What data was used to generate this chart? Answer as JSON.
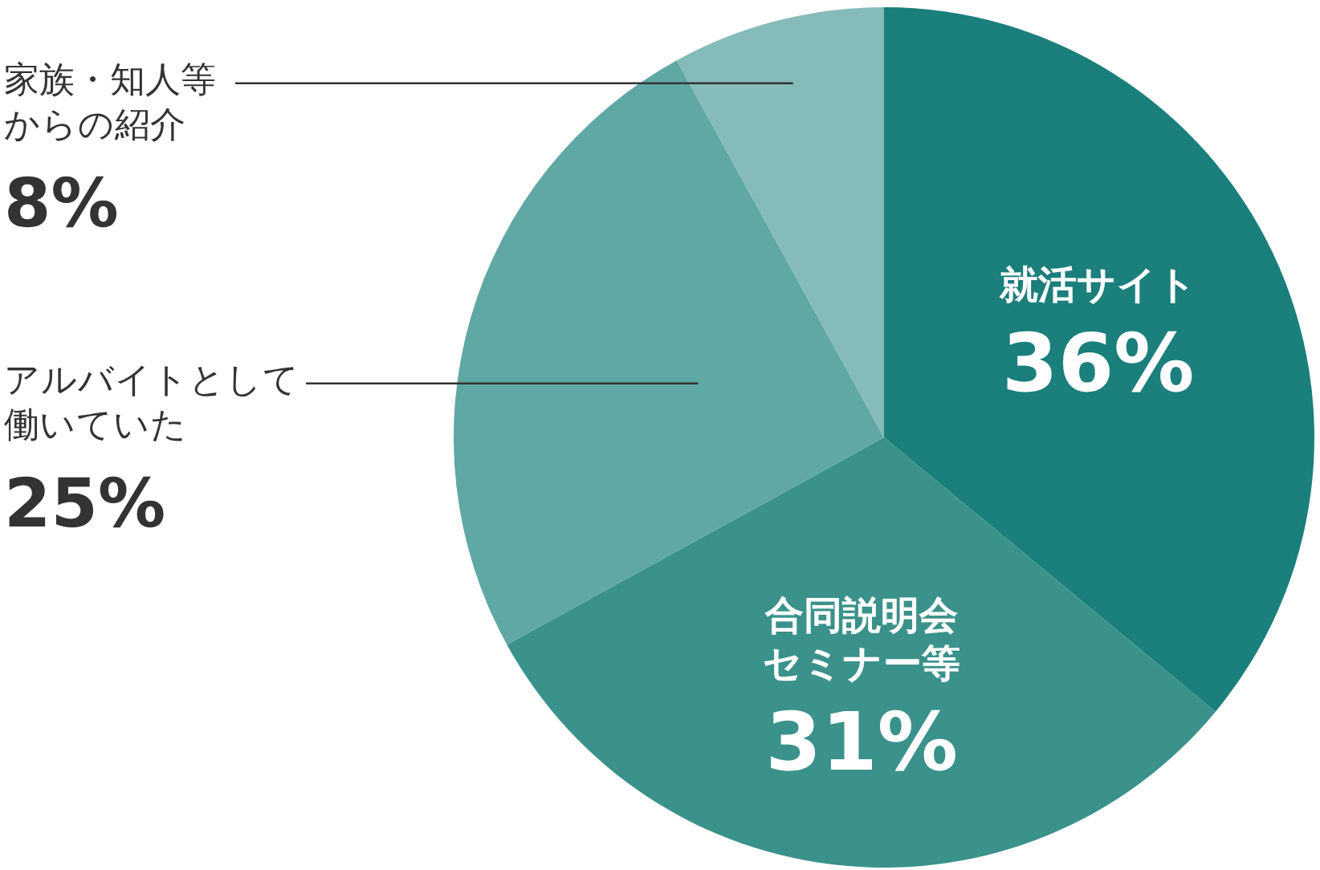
{
  "chart_data": {
    "type": "pie",
    "categories": [
      "就活サイト",
      "合同説明会セミナー等",
      "アルバイトとして働いていた",
      "家族・知人等からの紹介"
    ],
    "values": [
      36,
      31,
      25,
      8
    ],
    "colors": [
      "#1b7f7b",
      "#3a928a",
      "#5fa8a4",
      "#85bbb8"
    ],
    "value_labels": [
      "36%",
      "31%",
      "25%",
      "8%"
    ]
  }
}
